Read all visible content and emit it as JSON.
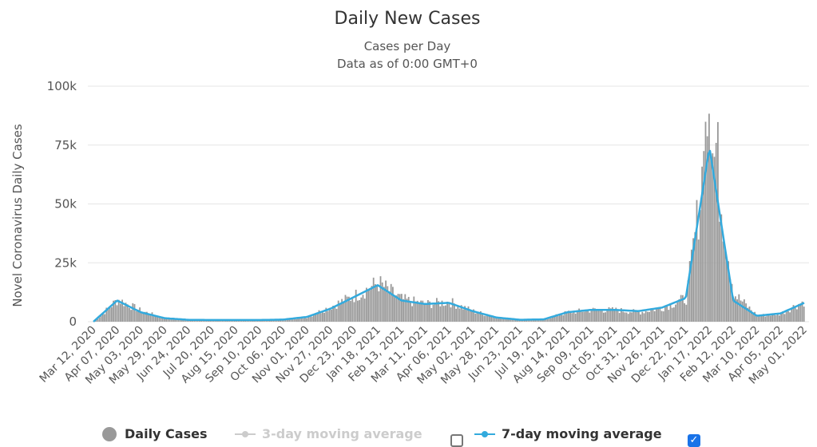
{
  "chart_data": {
    "type": "bar",
    "title": "Daily New Cases",
    "subtitle_lines": [
      "Cases per Day",
      "Data as of 0:00 GMT+0"
    ],
    "ylabel": "Novel Coronavirus Daily Cases",
    "ylim": [
      0,
      100000
    ],
    "yticks": [
      0,
      25000,
      50000,
      75000,
      100000
    ],
    "ytick_labels": [
      "0",
      "25k",
      "50k",
      "75k",
      "100k"
    ],
    "x_range": [
      "Mar 12, 2020",
      "May 04, 2022"
    ],
    "x_tick_labels": [
      "Mar 12, 2020",
      "Apr 07, 2020",
      "May 03, 2020",
      "May 29, 2020",
      "Jun 24, 2020",
      "Jul 20, 2020",
      "Aug 15, 2020",
      "Sep 10, 2020",
      "Oct 06, 2020",
      "Nov 01, 2020",
      "Nov 27, 2020",
      "Dec 23, 2020",
      "Jan 18, 2021",
      "Feb 13, 2021",
      "Mar 11, 2021",
      "Apr 06, 2021",
      "May 02, 2021",
      "May 28, 2021",
      "Jun 23, 2021",
      "Jul 19, 2021",
      "Aug 14, 2021",
      "Sep 09, 2021",
      "Oct 05, 2021",
      "Oct 31, 2021",
      "Nov 26, 2021",
      "Dec 22, 2021",
      "Jan 17, 2022",
      "Feb 12, 2022",
      "Mar 10, 2022",
      "Apr 05, 2022",
      "May 01, 2022"
    ],
    "series": [
      {
        "name": "Daily Cases",
        "type": "bar",
        "color": "#999999",
        "values_per_tick_interval": [
          0,
          9500,
          4500,
          1500,
          800,
          700,
          700,
          700,
          900,
          2000,
          6500,
          11000,
          16500,
          9500,
          7500,
          8500,
          4500,
          1800,
          800,
          1000,
          4000,
          5000,
          5000,
          4000,
          6000,
          10000,
          84000,
          12000,
          2500,
          3500,
          9000
        ],
        "peak_value": 86000
      },
      {
        "name": "3-day moving average",
        "type": "line",
        "color": "#cccccc",
        "visible": false
      },
      {
        "name": "7-day moving average",
        "type": "line",
        "color": "#33aadd",
        "visible": true,
        "values_per_tick_interval": [
          0,
          9000,
          4000,
          1500,
          800,
          700,
          700,
          700,
          900,
          2000,
          5500,
          10500,
          15500,
          9000,
          7500,
          8000,
          4500,
          1800,
          800,
          1000,
          4000,
          5000,
          5000,
          4500,
          6000,
          10000,
          74000,
          9000,
          2500,
          3500,
          8000
        ]
      }
    ],
    "legend": {
      "items": [
        {
          "label": "Daily Cases",
          "checked": null
        },
        {
          "label": "3-day moving average",
          "checked": false
        },
        {
          "label": "7-day moving average",
          "checked": true
        }
      ],
      "position": "bottom"
    }
  }
}
